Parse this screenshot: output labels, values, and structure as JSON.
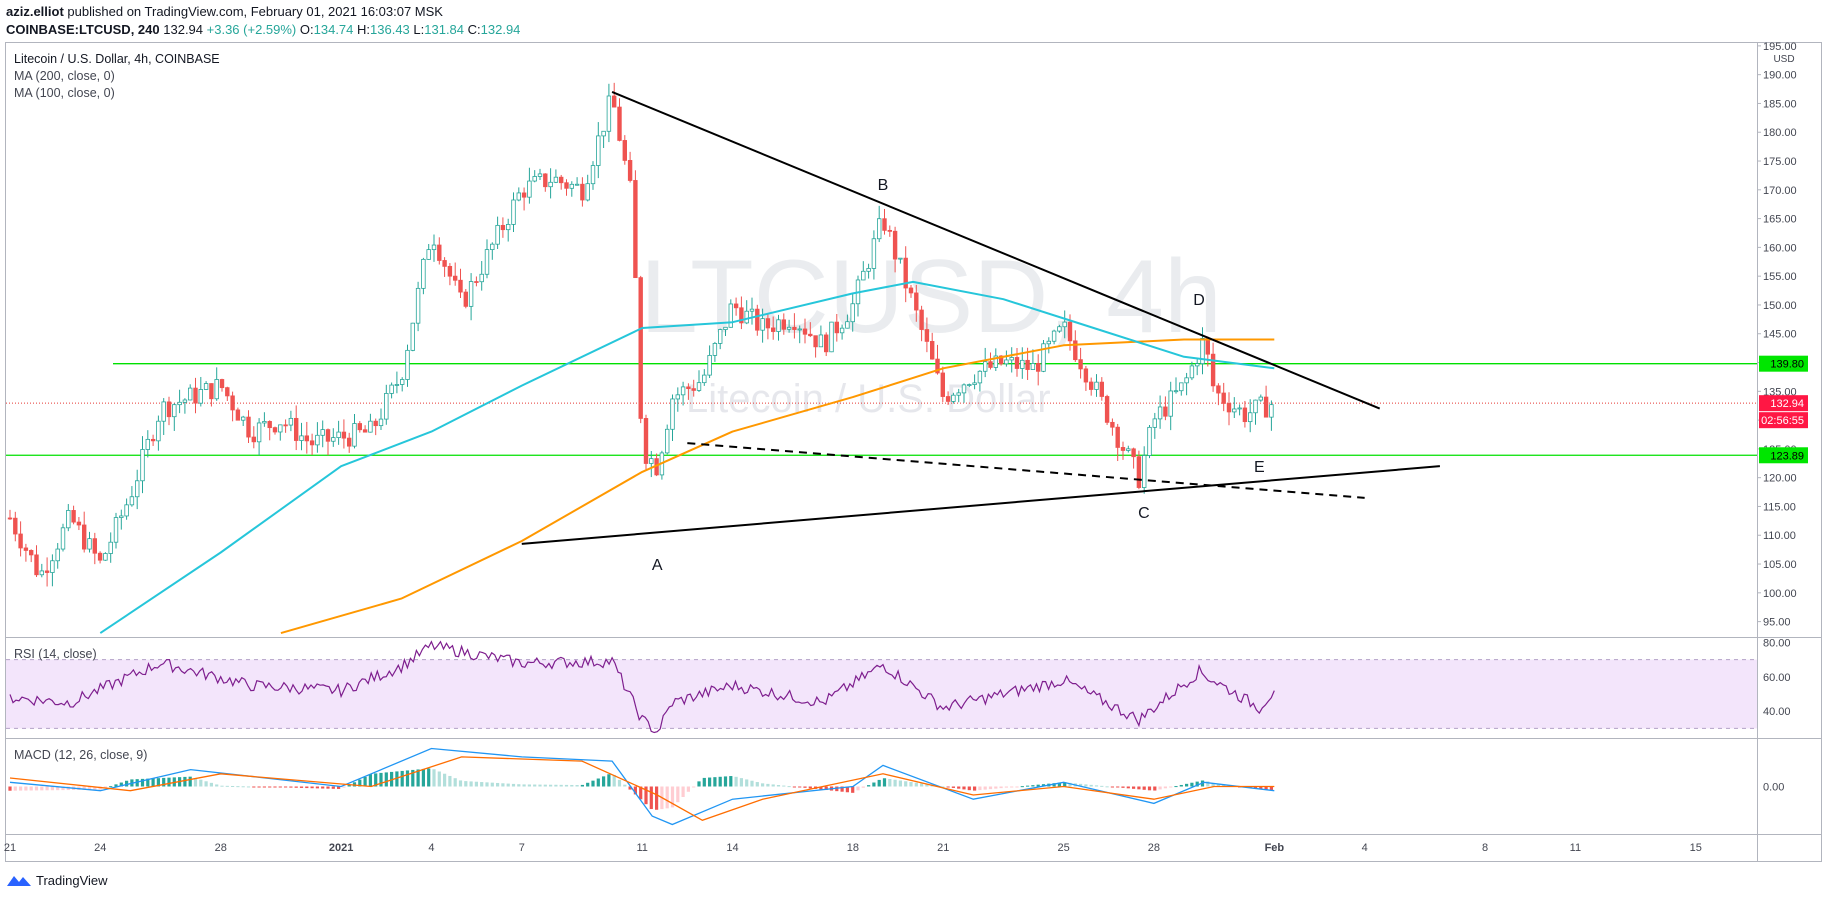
{
  "header": {
    "author": "aziz.elliot",
    "published_text": "published on TradingView.com, February 01, 2021 16:03:07 MSK",
    "symbol_line": "COINBASE:LTCUSD, 240",
    "last": "132.94",
    "change": "+3.36 (+2.59%)",
    "open_label": "O:",
    "open": "134.74",
    "high_label": "H:",
    "high": "136.43",
    "low_label": "L:",
    "low": "131.84",
    "close_label": "C:",
    "close": "132.94"
  },
  "legend": {
    "title": "Litecoin / U.S. Dollar, 4h, COINBASE",
    "ma200": "MA (200, close, 0)",
    "ma100": "MA (100, close, 0)"
  },
  "watermark": {
    "symbol": "LTCUSD, 4h",
    "name": "Litecoin / U.S. Dollar"
  },
  "price_axis": {
    "unit": "USD",
    "ticks": [
      "95.00",
      "100.00",
      "105.00",
      "110.00",
      "115.00",
      "120.00",
      "125.00",
      "130.00",
      "135.00",
      "140.00",
      "145.00",
      "150.00",
      "155.00",
      "160.00",
      "165.00",
      "170.00",
      "175.00",
      "180.00",
      "185.00",
      "190.00",
      "195.00"
    ]
  },
  "price_tags": {
    "resistance": "139.80",
    "last_price": "132.94",
    "countdown": "02:56:55",
    "support": "123.89"
  },
  "time_axis": {
    "labels": [
      "21",
      "24",
      "28",
      "2021",
      "4",
      "7",
      "11",
      "14",
      "18",
      "21",
      "25",
      "28",
      "Feb",
      "4",
      "8",
      "11",
      "15"
    ]
  },
  "wave_labels": [
    "A",
    "B",
    "C",
    "D",
    "E"
  ],
  "rsi": {
    "label": "RSI (14, close)",
    "ticks": [
      "40.00",
      "60.00",
      "80.00"
    ]
  },
  "macd": {
    "label": "MACD (12, 26, close, 9)",
    "ticks": [
      "0.00"
    ]
  },
  "footer": {
    "brand": "TradingView"
  },
  "colors": {
    "up": "#26a69a",
    "down": "#ef5350",
    "ma200": "#ff9800",
    "ma100": "#26c6da",
    "level_line": "#00e000",
    "rsi_line": "#7e1e8e",
    "rsi_band": "#f3e5fb",
    "macd_line": "#2196f3",
    "signal_line": "#ff6d00",
    "tag_red": "#ff1744",
    "tag_green": "#00e600"
  },
  "chart_data": {
    "type": "candlestick",
    "title": "Litecoin / U.S. Dollar, 4h, COINBASE",
    "x_range": [
      "2020-12-21",
      "2021-02-17"
    ],
    "ylim": [
      92.5,
      195.5
    ],
    "grid": false,
    "anchor_points": [
      {
        "date": "2020-12-21",
        "close": 113
      },
      {
        "date": "2020-12-22",
        "close": 103
      },
      {
        "date": "2020-12-23",
        "close": 113
      },
      {
        "date": "2020-12-24",
        "close": 105
      },
      {
        "date": "2020-12-25",
        "close": 117
      },
      {
        "date": "2020-12-26",
        "close": 132
      },
      {
        "date": "2020-12-27",
        "close": 134
      },
      {
        "date": "2020-12-28",
        "close": 136
      },
      {
        "date": "2020-12-29",
        "close": 128
      },
      {
        "date": "2020-12-30",
        "close": 130
      },
      {
        "date": "2020-12-31",
        "close": 126
      },
      {
        "date": "2021-01-01",
        "close": 127
      },
      {
        "date": "2021-01-02",
        "close": 128
      },
      {
        "date": "2021-01-03",
        "close": 138
      },
      {
        "date": "2021-01-04",
        "close": 163
      },
      {
        "date": "2021-01-05",
        "close": 150
      },
      {
        "date": "2021-01-06",
        "close": 160
      },
      {
        "date": "2021-01-07",
        "close": 170
      },
      {
        "date": "2021-01-08",
        "close": 172
      },
      {
        "date": "2021-01-09",
        "close": 170
      },
      {
        "date": "2021-01-10",
        "close": 186
      },
      {
        "date": "2021-01-10T16:00",
        "close": 168
      },
      {
        "date": "2021-01-11",
        "close": 125
      },
      {
        "date": "2021-01-11T12:00",
        "close": 122
      },
      {
        "date": "2021-01-12",
        "close": 134
      },
      {
        "date": "2021-01-13",
        "close": 137
      },
      {
        "date": "2021-01-14",
        "close": 150
      },
      {
        "date": "2021-01-15",
        "close": 146
      },
      {
        "date": "2021-01-16",
        "close": 148
      },
      {
        "date": "2021-01-17",
        "close": 143
      },
      {
        "date": "2021-01-18",
        "close": 150
      },
      {
        "date": "2021-01-19",
        "close": 165
      },
      {
        "date": "2021-01-20",
        "close": 150
      },
      {
        "date": "2021-01-21",
        "close": 134
      },
      {
        "date": "2021-01-22",
        "close": 138
      },
      {
        "date": "2021-01-23",
        "close": 140
      },
      {
        "date": "2021-01-24",
        "close": 139
      },
      {
        "date": "2021-01-25",
        "close": 146
      },
      {
        "date": "2021-01-26",
        "close": 136
      },
      {
        "date": "2021-01-27",
        "close": 125
      },
      {
        "date": "2021-01-27T12:00",
        "close": 120
      },
      {
        "date": "2021-01-28",
        "close": 130
      },
      {
        "date": "2021-01-29",
        "close": 136
      },
      {
        "date": "2021-01-29T16:00",
        "close": 144
      },
      {
        "date": "2021-01-30",
        "close": 135
      },
      {
        "date": "2021-01-31",
        "close": 131
      },
      {
        "date": "2021-02-01",
        "close": 133
      }
    ],
    "series": [
      {
        "name": "MA (200, close, 0)",
        "points": [
          {
            "date": "2020-12-30",
            "value": 93
          },
          {
            "date": "2021-01-03",
            "value": 99
          },
          {
            "date": "2021-01-07",
            "value": 109
          },
          {
            "date": "2021-01-11",
            "value": 121
          },
          {
            "date": "2021-01-14",
            "value": 128
          },
          {
            "date": "2021-01-18",
            "value": 134
          },
          {
            "date": "2021-01-21",
            "value": 139
          },
          {
            "date": "2021-01-25",
            "value": 143
          },
          {
            "date": "2021-01-29",
            "value": 144
          },
          {
            "date": "2021-02-01",
            "value": 144
          }
        ]
      },
      {
        "name": "MA (100, close, 0)",
        "points": [
          {
            "date": "2020-12-24",
            "value": 93
          },
          {
            "date": "2020-12-28",
            "value": 107
          },
          {
            "date": "2021-01-01",
            "value": 122
          },
          {
            "date": "2021-01-04",
            "value": 128
          },
          {
            "date": "2021-01-07",
            "value": 136
          },
          {
            "date": "2021-01-11",
            "value": 146
          },
          {
            "date": "2021-01-14",
            "value": 147
          },
          {
            "date": "2021-01-18",
            "value": 152
          },
          {
            "date": "2021-01-20",
            "value": 154
          },
          {
            "date": "2021-01-23",
            "value": 151
          },
          {
            "date": "2021-01-26",
            "value": 146
          },
          {
            "date": "2021-01-29",
            "value": 141
          },
          {
            "date": "2021-02-01",
            "value": 139
          }
        ]
      }
    ],
    "horizontal_levels": [
      139.8,
      123.89
    ],
    "trendlines": [
      {
        "from": {
          "date": "2021-01-10",
          "value": 187
        },
        "to": {
          "date": "2021-02-04T12:00",
          "value": 132
        }
      },
      {
        "from": {
          "date": "2021-01-07",
          "value": 108.5
        },
        "to": {
          "date": "2021-02-06T12:00",
          "value": 122
        }
      },
      {
        "from": {
          "date": "2021-01-12T12:00",
          "value": 126
        },
        "to": {
          "date": "2021-02-04",
          "value": 116.5
        },
        "dashed": true
      }
    ],
    "wave_points": [
      {
        "label": "A",
        "date": "2021-01-11T12:00",
        "value": 104
      },
      {
        "label": "B",
        "date": "2021-01-19",
        "value": 170
      },
      {
        "label": "C",
        "date": "2021-01-27T16:00",
        "value": 113
      },
      {
        "label": "D",
        "date": "2021-01-29T12:00",
        "value": 150
      },
      {
        "label": "E",
        "date": "2021-01-31T12:00",
        "value": 121
      }
    ],
    "rsi": {
      "ylim": [
        25,
        82
      ],
      "band": [
        30,
        70
      ],
      "points": [
        {
          "date": "2020-12-21",
          "value": 48
        },
        {
          "date": "2020-12-23",
          "value": 45
        },
        {
          "date": "2020-12-26",
          "value": 68
        },
        {
          "date": "2020-12-29",
          "value": 55
        },
        {
          "date": "2021-01-01",
          "value": 52
        },
        {
          "date": "2021-01-03",
          "value": 66
        },
        {
          "date": "2021-01-04",
          "value": 78
        },
        {
          "date": "2021-01-07",
          "value": 68
        },
        {
          "date": "2021-01-10",
          "value": 69
        },
        {
          "date": "2021-01-11",
          "value": 35
        },
        {
          "date": "2021-01-11T12:00",
          "value": 28
        },
        {
          "date": "2021-01-12",
          "value": 45
        },
        {
          "date": "2021-01-14",
          "value": 55
        },
        {
          "date": "2021-01-17",
          "value": 45
        },
        {
          "date": "2021-01-19",
          "value": 67
        },
        {
          "date": "2021-01-21",
          "value": 42
        },
        {
          "date": "2021-01-25",
          "value": 58
        },
        {
          "date": "2021-01-27T12:00",
          "value": 35
        },
        {
          "date": "2021-01-29T12:00",
          "value": 63
        },
        {
          "date": "2021-01-31T12:00",
          "value": 42
        },
        {
          "date": "2021-02-01",
          "value": 52
        }
      ]
    },
    "macd": {
      "ylim": [
        -11,
        11
      ],
      "macd_line": [
        {
          "date": "2020-12-21",
          "value": 1
        },
        {
          "date": "2020-12-24",
          "value": -1
        },
        {
          "date": "2020-12-27",
          "value": 4
        },
        {
          "date": "2021-01-01",
          "value": 0
        },
        {
          "date": "2021-01-04",
          "value": 9
        },
        {
          "date": "2021-01-07",
          "value": 7
        },
        {
          "date": "2021-01-10",
          "value": 6
        },
        {
          "date": "2021-01-11T08:00",
          "value": -7
        },
        {
          "date": "2021-01-12",
          "value": -9
        },
        {
          "date": "2021-01-14",
          "value": -3
        },
        {
          "date": "2021-01-18",
          "value": 0
        },
        {
          "date": "2021-01-19",
          "value": 5
        },
        {
          "date": "2021-01-22",
          "value": -3
        },
        {
          "date": "2021-01-25",
          "value": 1
        },
        {
          "date": "2021-01-28",
          "value": -4
        },
        {
          "date": "2021-01-29T16:00",
          "value": 1
        },
        {
          "date": "2021-02-01",
          "value": -1
        }
      ],
      "signal_line": [
        {
          "date": "2020-12-21",
          "value": 2
        },
        {
          "date": "2020-12-25",
          "value": -1
        },
        {
          "date": "2020-12-28",
          "value": 3
        },
        {
          "date": "2021-01-02",
          "value": 0
        },
        {
          "date": "2021-01-05",
          "value": 7
        },
        {
          "date": "2021-01-09",
          "value": 6
        },
        {
          "date": "2021-01-11T12:00",
          "value": -2
        },
        {
          "date": "2021-01-13",
          "value": -8
        },
        {
          "date": "2021-01-15",
          "value": -3
        },
        {
          "date": "2021-01-19",
          "value": 3
        },
        {
          "date": "2021-01-22",
          "value": -2
        },
        {
          "date": "2021-01-25",
          "value": 0
        },
        {
          "date": "2021-01-28",
          "value": -3
        },
        {
          "date": "2021-01-30",
          "value": 0
        },
        {
          "date": "2021-02-01",
          "value": 0
        }
      ]
    }
  }
}
